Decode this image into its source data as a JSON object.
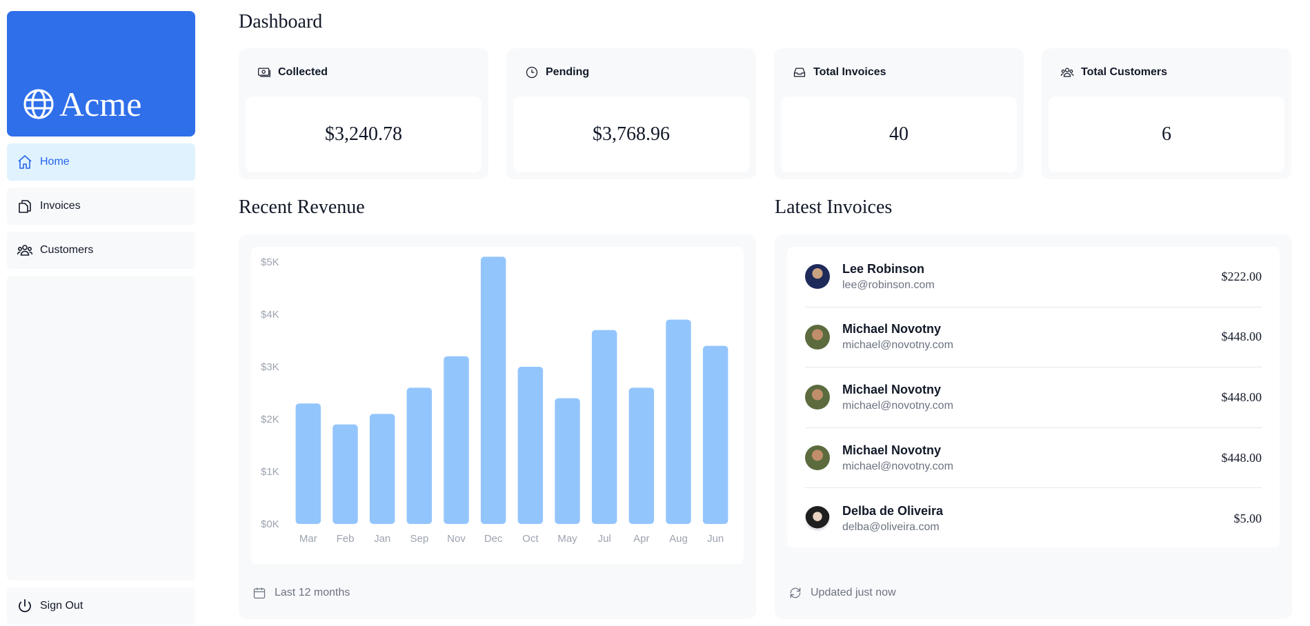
{
  "sidebar": {
    "logo_text": "Acme",
    "logo_icon": "globe-icon",
    "brand_color": "#2f6fea",
    "items": [
      {
        "label": "Home",
        "icon": "home-icon",
        "active": true
      },
      {
        "label": "Invoices",
        "icon": "document-duplicate-icon",
        "active": false
      },
      {
        "label": "Customers",
        "icon": "user-group-icon",
        "active": false
      }
    ],
    "sign_out_label": "Sign Out"
  },
  "page": {
    "title": "Dashboard"
  },
  "cards": [
    {
      "label": "Collected",
      "icon": "banknotes-icon",
      "value": "$3,240.78"
    },
    {
      "label": "Pending",
      "icon": "clock-icon",
      "value": "$3,768.96"
    },
    {
      "label": "Total Invoices",
      "icon": "inbox-icon",
      "value": "40"
    },
    {
      "label": "Total Customers",
      "icon": "user-group-icon",
      "value": "6"
    }
  ],
  "revenue": {
    "title": "Recent Revenue",
    "footer": "Last 12 months",
    "footer_icon": "calendar-icon"
  },
  "chart_data": {
    "type": "bar",
    "categories": [
      "Mar",
      "Feb",
      "Jan",
      "Sep",
      "Nov",
      "Dec",
      "Oct",
      "May",
      "Jul",
      "Apr",
      "Aug",
      "Jun"
    ],
    "values": [
      2300,
      1900,
      2100,
      2600,
      3200,
      5100,
      3000,
      2400,
      3700,
      2600,
      3900,
      3400
    ],
    "yticks": [
      "$0K",
      "$1K",
      "$2K",
      "$3K",
      "$4K",
      "$5K"
    ],
    "ylim": [
      0,
      5000
    ],
    "bar_color": "#93c5fd",
    "grid": false
  },
  "latest_invoices": {
    "title": "Latest Invoices",
    "footer": "Updated just now",
    "footer_icon": "arrow-path-icon",
    "rows": [
      {
        "name": "Lee Robinson",
        "email": "lee@robinson.com",
        "amount": "$222.00",
        "avatar_color": "#1e2a5a"
      },
      {
        "name": "Michael Novotny",
        "email": "michael@novotny.com",
        "amount": "$448.00",
        "avatar_color": "#6b5a3e"
      },
      {
        "name": "Michael Novotny",
        "email": "michael@novotny.com",
        "amount": "$448.00",
        "avatar_color": "#6b5a3e"
      },
      {
        "name": "Michael Novotny",
        "email": "michael@novotny.com",
        "amount": "$448.00",
        "avatar_color": "#6b5a3e"
      },
      {
        "name": "Delba de Oliveira",
        "email": "delba@oliveira.com",
        "amount": "$5.00",
        "avatar_color": "#2b2b2b"
      }
    ]
  }
}
